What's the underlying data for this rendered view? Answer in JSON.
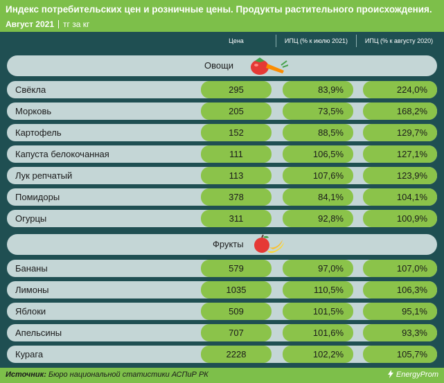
{
  "header": {
    "title": "Индекс потребительских цен и розничные цены. Продукты растительного происхождения.",
    "period": "Август 2021",
    "unit": "тг за кг"
  },
  "columns": {
    "price": "Цена",
    "ipc_month": "ИПЦ (% к июлю 2021)",
    "ipc_year": "ИПЦ (% к августу 2020)"
  },
  "sections": [
    {
      "title": "Овощи",
      "icon": "vegetables-icon",
      "rows": [
        {
          "name": "Свёкла",
          "price": "295",
          "ipc_month": "83,9%",
          "ipc_year": "224,0%"
        },
        {
          "name": "Морковь",
          "price": "205",
          "ipc_month": "73,5%",
          "ipc_year": "168,2%"
        },
        {
          "name": "Картофель",
          "price": "152",
          "ipc_month": "88,5%",
          "ipc_year": "129,7%"
        },
        {
          "name": "Капуста белокочанная",
          "price": "111",
          "ipc_month": "106,5%",
          "ipc_year": "127,1%"
        },
        {
          "name": "Лук репчатый",
          "price": "113",
          "ipc_month": "107,6%",
          "ipc_year": "123,9%"
        },
        {
          "name": "Помидоры",
          "price": "378",
          "ipc_month": "84,1%",
          "ipc_year": "104,1%"
        },
        {
          "name": "Огурцы",
          "price": "311",
          "ipc_month": "92,8%",
          "ipc_year": "100,9%"
        }
      ]
    },
    {
      "title": "Фрукты",
      "icon": "fruits-icon",
      "rows": [
        {
          "name": "Бананы",
          "price": "579",
          "ipc_month": "97,0%",
          "ipc_year": "107,0%"
        },
        {
          "name": "Лимоны",
          "price": "1035",
          "ipc_month": "110,5%",
          "ipc_year": "106,3%"
        },
        {
          "name": "Яблоки",
          "price": "509",
          "ipc_month": "101,5%",
          "ipc_year": "95,1%"
        },
        {
          "name": "Апельсины",
          "price": "707",
          "ipc_month": "101,6%",
          "ipc_year": "93,3%"
        },
        {
          "name": "Курага",
          "price": "2228",
          "ipc_month": "102,2%",
          "ipc_year": "105,7%"
        }
      ]
    }
  ],
  "footer": {
    "source_label": "Источник:",
    "source_text": "Бюро национальной статистики АСПиР РК",
    "brand": "EnergyProm"
  },
  "colors": {
    "header_bg": "#7dbf4a",
    "panel_bg": "#1f4f52",
    "row_bg": "#c4d6d6",
    "pill_bg": "#8bc34a"
  }
}
